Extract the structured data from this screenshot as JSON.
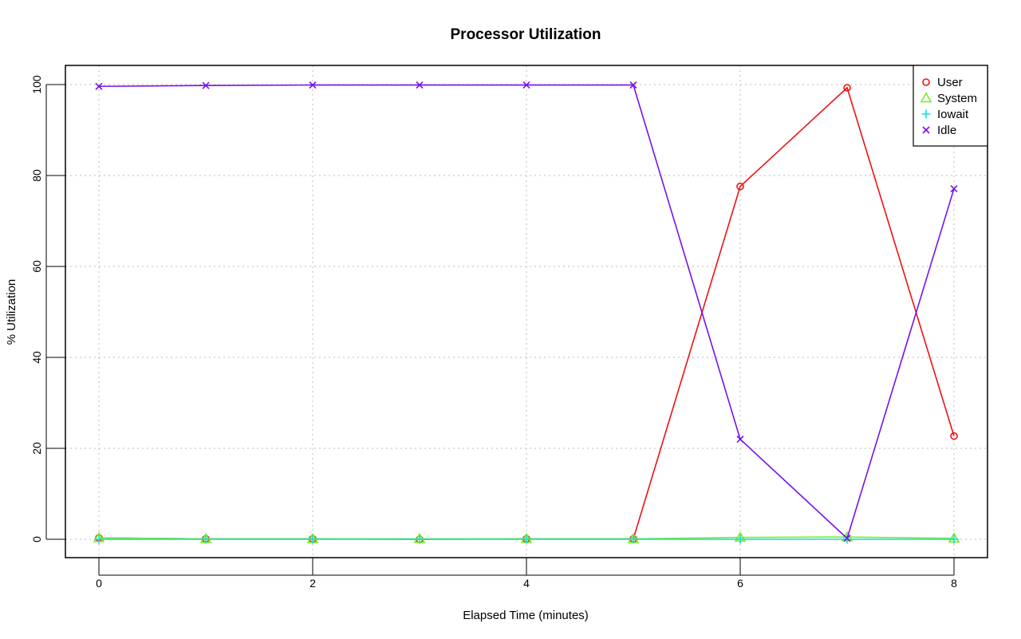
{
  "chart_data": {
    "type": "line",
    "title": "Processor Utilization",
    "xlabel": "Elapsed Time (minutes)",
    "ylabel": "% Utilization",
    "xlim": [
      0,
      8
    ],
    "ylim": [
      0,
      100
    ],
    "x_ticks": [
      0,
      2,
      4,
      6,
      8
    ],
    "y_ticks": [
      0,
      20,
      40,
      60,
      80,
      100
    ],
    "grid": true,
    "legend_position": "top-right",
    "x": [
      0,
      1,
      2,
      3,
      4,
      5,
      6,
      7,
      8
    ],
    "series": [
      {
        "name": "User",
        "marker": "circle",
        "color": "#ee1111",
        "values": [
          0.3,
          0.1,
          0.1,
          0.0,
          0.1,
          0.1,
          77.6,
          99.3,
          22.7
        ]
      },
      {
        "name": "System",
        "marker": "triangle",
        "color": "#77ee22",
        "values": [
          0.3,
          0.1,
          0.1,
          0.1,
          0.1,
          0.1,
          0.4,
          0.5,
          0.2
        ]
      },
      {
        "name": "Iowait",
        "marker": "plus",
        "color": "#11dddd",
        "values": [
          0.0,
          0.0,
          0.0,
          0.0,
          0.0,
          0.0,
          0.0,
          0.0,
          0.0
        ]
      },
      {
        "name": "Idle",
        "marker": "cross",
        "color": "#7711ee",
        "values": [
          99.6,
          99.8,
          99.9,
          99.9,
          99.9,
          99.9,
          22.0,
          0.2,
          77.1
        ]
      }
    ]
  }
}
